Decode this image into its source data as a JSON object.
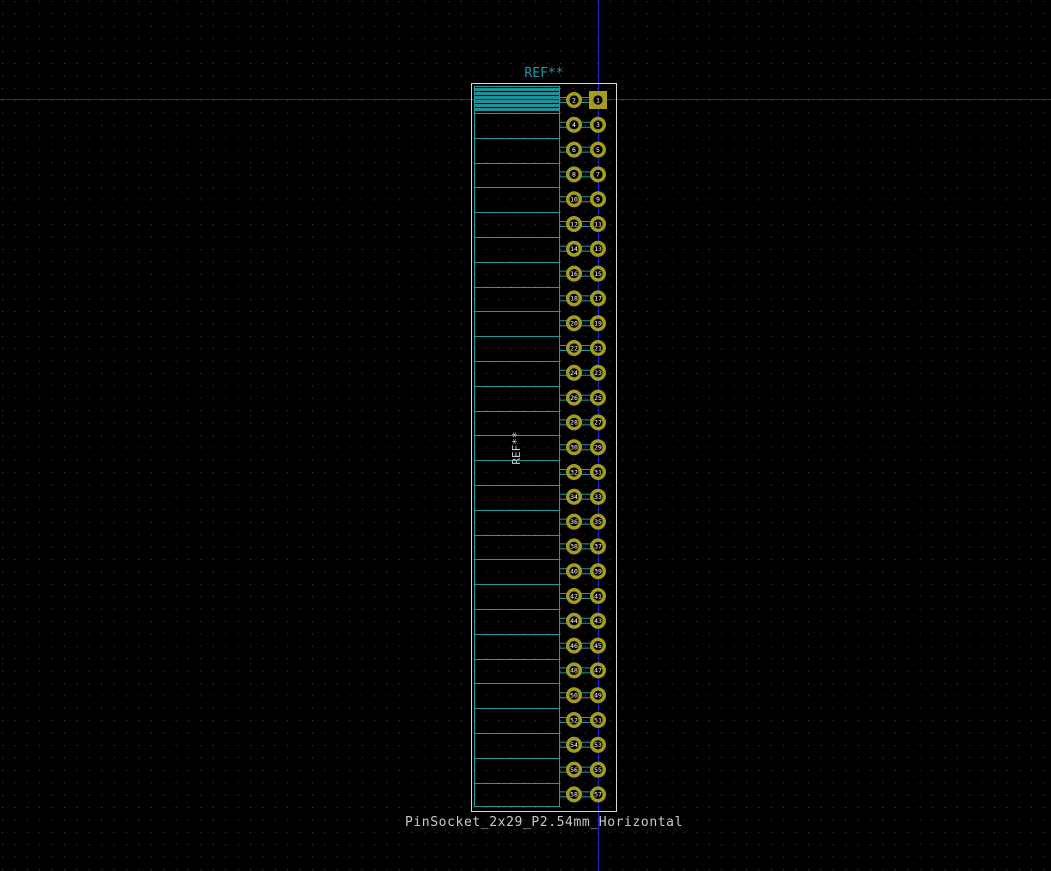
{
  "editor": {
    "view": "KiCad footprint editor canvas",
    "colors": {
      "background": "#000000",
      "grid_dot": "#4a4a4a",
      "crosshair": "#1a24c8",
      "pad_ring": "#a49c1c",
      "pad_hole": "#000000",
      "pad_number": "#ffffff",
      "silkscreen": "#c8c8c8",
      "fab": "#1f9aa0",
      "fab_fill": "#1e8f96",
      "courtyard": "#d8d8d8"
    }
  },
  "footprint": {
    "reference_top": "REF**",
    "reference_fab": "REF**",
    "value": "PinSocket_2x29_P2.54mm_Horizontal",
    "rows": 29,
    "columns": 2,
    "pin_one_shape": "square",
    "pads": [
      {
        "row": 1,
        "odd": "1",
        "even": "2"
      },
      {
        "row": 2,
        "odd": "3",
        "even": "4"
      },
      {
        "row": 3,
        "odd": "5",
        "even": "6"
      },
      {
        "row": 4,
        "odd": "7",
        "even": "8"
      },
      {
        "row": 5,
        "odd": "9",
        "even": "10"
      },
      {
        "row": 6,
        "odd": "11",
        "even": "12"
      },
      {
        "row": 7,
        "odd": "13",
        "even": "14"
      },
      {
        "row": 8,
        "odd": "15",
        "even": "16"
      },
      {
        "row": 9,
        "odd": "17",
        "even": "18"
      },
      {
        "row": 10,
        "odd": "19",
        "even": "20"
      },
      {
        "row": 11,
        "odd": "21",
        "even": "22"
      },
      {
        "row": 12,
        "odd": "23",
        "even": "24"
      },
      {
        "row": 13,
        "odd": "25",
        "even": "26"
      },
      {
        "row": 14,
        "odd": "27",
        "even": "28"
      },
      {
        "row": 15,
        "odd": "29",
        "even": "30"
      },
      {
        "row": 16,
        "odd": "31",
        "even": "32"
      },
      {
        "row": 17,
        "odd": "33",
        "even": "34"
      },
      {
        "row": 18,
        "odd": "35",
        "even": "36"
      },
      {
        "row": 19,
        "odd": "37",
        "even": "38"
      },
      {
        "row": 20,
        "odd": "39",
        "even": "40"
      },
      {
        "row": 21,
        "odd": "41",
        "even": "42"
      },
      {
        "row": 22,
        "odd": "43",
        "even": "44"
      },
      {
        "row": 23,
        "odd": "45",
        "even": "46"
      },
      {
        "row": 24,
        "odd": "47",
        "even": "48"
      },
      {
        "row": 25,
        "odd": "49",
        "even": "50"
      },
      {
        "row": 26,
        "odd": "51",
        "even": "52"
      },
      {
        "row": 27,
        "odd": "53",
        "even": "54"
      },
      {
        "row": 28,
        "odd": "55",
        "even": "56"
      },
      {
        "row": 29,
        "odd": "57",
        "even": "58"
      }
    ]
  }
}
